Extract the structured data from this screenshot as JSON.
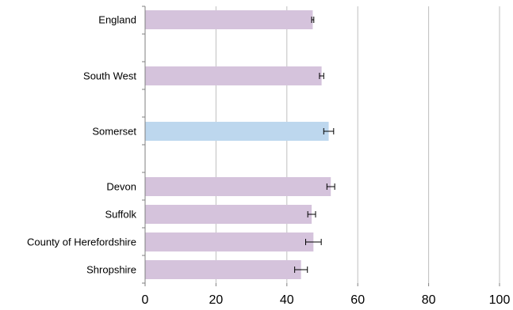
{
  "chart_data": {
    "type": "bar",
    "orientation": "horizontal",
    "title": "",
    "xlabel": "",
    "ylabel": "",
    "categories": [
      "England",
      "South West",
      "Somerset",
      "Devon",
      "Suffolk",
      "County of Herefordshire",
      "Shropshire"
    ],
    "values": [
      47.3,
      49.8,
      51.8,
      52.4,
      47.0,
      47.5,
      44.0
    ],
    "error_low": [
      47.0,
      49.2,
      50.4,
      51.3,
      45.9,
      45.3,
      42.2
    ],
    "error_high": [
      47.6,
      50.4,
      53.2,
      53.5,
      48.1,
      49.7,
      45.8
    ],
    "highlight_category": "Somerset",
    "xlim": [
      0,
      100
    ],
    "xticks": [
      "0",
      "20",
      "40",
      "60",
      "80",
      "100"
    ],
    "grid": "vertical",
    "colors": {
      "bar": "#d5c3dc",
      "highlight": "#bdd7ee",
      "gridline": "#bfbfbf",
      "axis": "#7f7f7f",
      "error_bar": "#000000"
    }
  }
}
